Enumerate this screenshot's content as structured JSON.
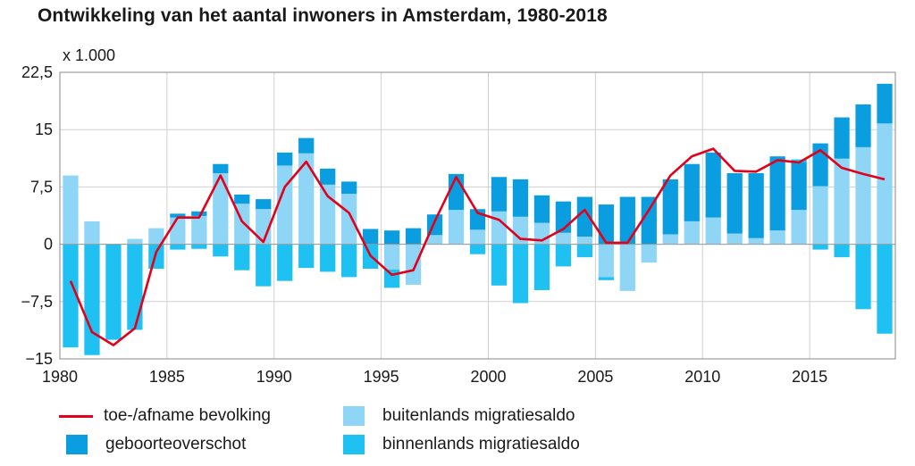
{
  "chart_data": {
    "type": "bar",
    "title": "Ontwikkeling van het aantal inwoners in Amsterdam, 1980-2018",
    "unit": "x 1.000",
    "x": [
      1980,
      1981,
      1982,
      1983,
      1984,
      1985,
      1986,
      1987,
      1988,
      1989,
      1990,
      1991,
      1992,
      1993,
      1994,
      1995,
      1996,
      1997,
      1998,
      1999,
      2000,
      2001,
      2002,
      2003,
      2004,
      2005,
      2006,
      2007,
      2008,
      2009,
      2010,
      2011,
      2012,
      2013,
      2014,
      2015,
      2016,
      2017,
      2018
    ],
    "x_ticks": [
      1980,
      1985,
      1990,
      1995,
      2000,
      2005,
      2010,
      2015
    ],
    "y_ticks": [
      22.5,
      15,
      7.5,
      0,
      -7.5,
      -15
    ],
    "y_tick_labels": [
      "22,5",
      "15",
      "7,5",
      "0",
      "−7,5",
      "−15"
    ],
    "ylim": [
      -15,
      22.5
    ],
    "grid": true,
    "legend_position": "bottom",
    "series": [
      {
        "name": "buitenlands migratiesaldo",
        "kind": "bar",
        "color": "#8fd5f5",
        "values": [
          9.0,
          3.0,
          0,
          0.7,
          2.1,
          3.5,
          3.7,
          9.3,
          5.3,
          4.6,
          10.3,
          11.9,
          7.8,
          6.6,
          0,
          -3.3,
          -5.3,
          1.2,
          4.5,
          1.9,
          4.3,
          3.6,
          2.8,
          1.5,
          1.0,
          -4.3,
          -6.1,
          -2.4,
          1.3,
          3.0,
          3.5,
          1.4,
          0.8,
          1.8,
          4.5,
          7.6,
          11.2,
          12.7,
          15.8
        ]
      },
      {
        "name": "geboorteoverschot",
        "kind": "bar",
        "color": "#0a9ee0",
        "values": [
          0,
          0,
          0,
          0,
          0,
          0.5,
          0.6,
          1.2,
          1.2,
          1.3,
          1.7,
          2.0,
          2.1,
          1.6,
          2.0,
          1.8,
          2.1,
          2.7,
          4.7,
          2.7,
          4.5,
          4.9,
          3.6,
          4.1,
          5.2,
          5.2,
          6.2,
          6.2,
          7.2,
          7.5,
          8.5,
          7.9,
          8.5,
          9.7,
          6.2,
          5.6,
          5.4,
          5.6,
          5.2
        ]
      },
      {
        "name": "binnenlands migratiesaldo",
        "kind": "bar",
        "color": "#1ec1f1",
        "values": [
          -13.5,
          -14.5,
          -12.5,
          -11.2,
          -3.2,
          -0.7,
          -0.6,
          -1.6,
          -3.4,
          -5.5,
          -4.8,
          -3.1,
          -3.6,
          -4.3,
          -3.2,
          -2.4,
          0,
          0,
          0,
          -1.3,
          -5.4,
          -7.7,
          -6.0,
          -2.9,
          -1.7,
          -0.4,
          0,
          0,
          0,
          0,
          0,
          0,
          0,
          0,
          0.4,
          -0.7,
          -1.7,
          -8.5,
          -11.7
        ]
      },
      {
        "name": "toe-/afname bevolking",
        "kind": "line",
        "color": "#e2001a",
        "values": [
          -4.8,
          -11.5,
          -13.2,
          -11.0,
          -1.0,
          3.5,
          3.5,
          9.0,
          3.0,
          0.3,
          7.5,
          10.8,
          6.3,
          4.1,
          -1.5,
          -4.0,
          -3.4,
          3.0,
          8.8,
          4.1,
          3.2,
          0.7,
          0.5,
          2.0,
          4.5,
          0.2,
          0.2,
          4.5,
          9.0,
          11.5,
          12.5,
          9.6,
          9.5,
          11.0,
          10.7,
          12.3,
          10.0,
          9.2,
          8.5
        ]
      }
    ]
  }
}
